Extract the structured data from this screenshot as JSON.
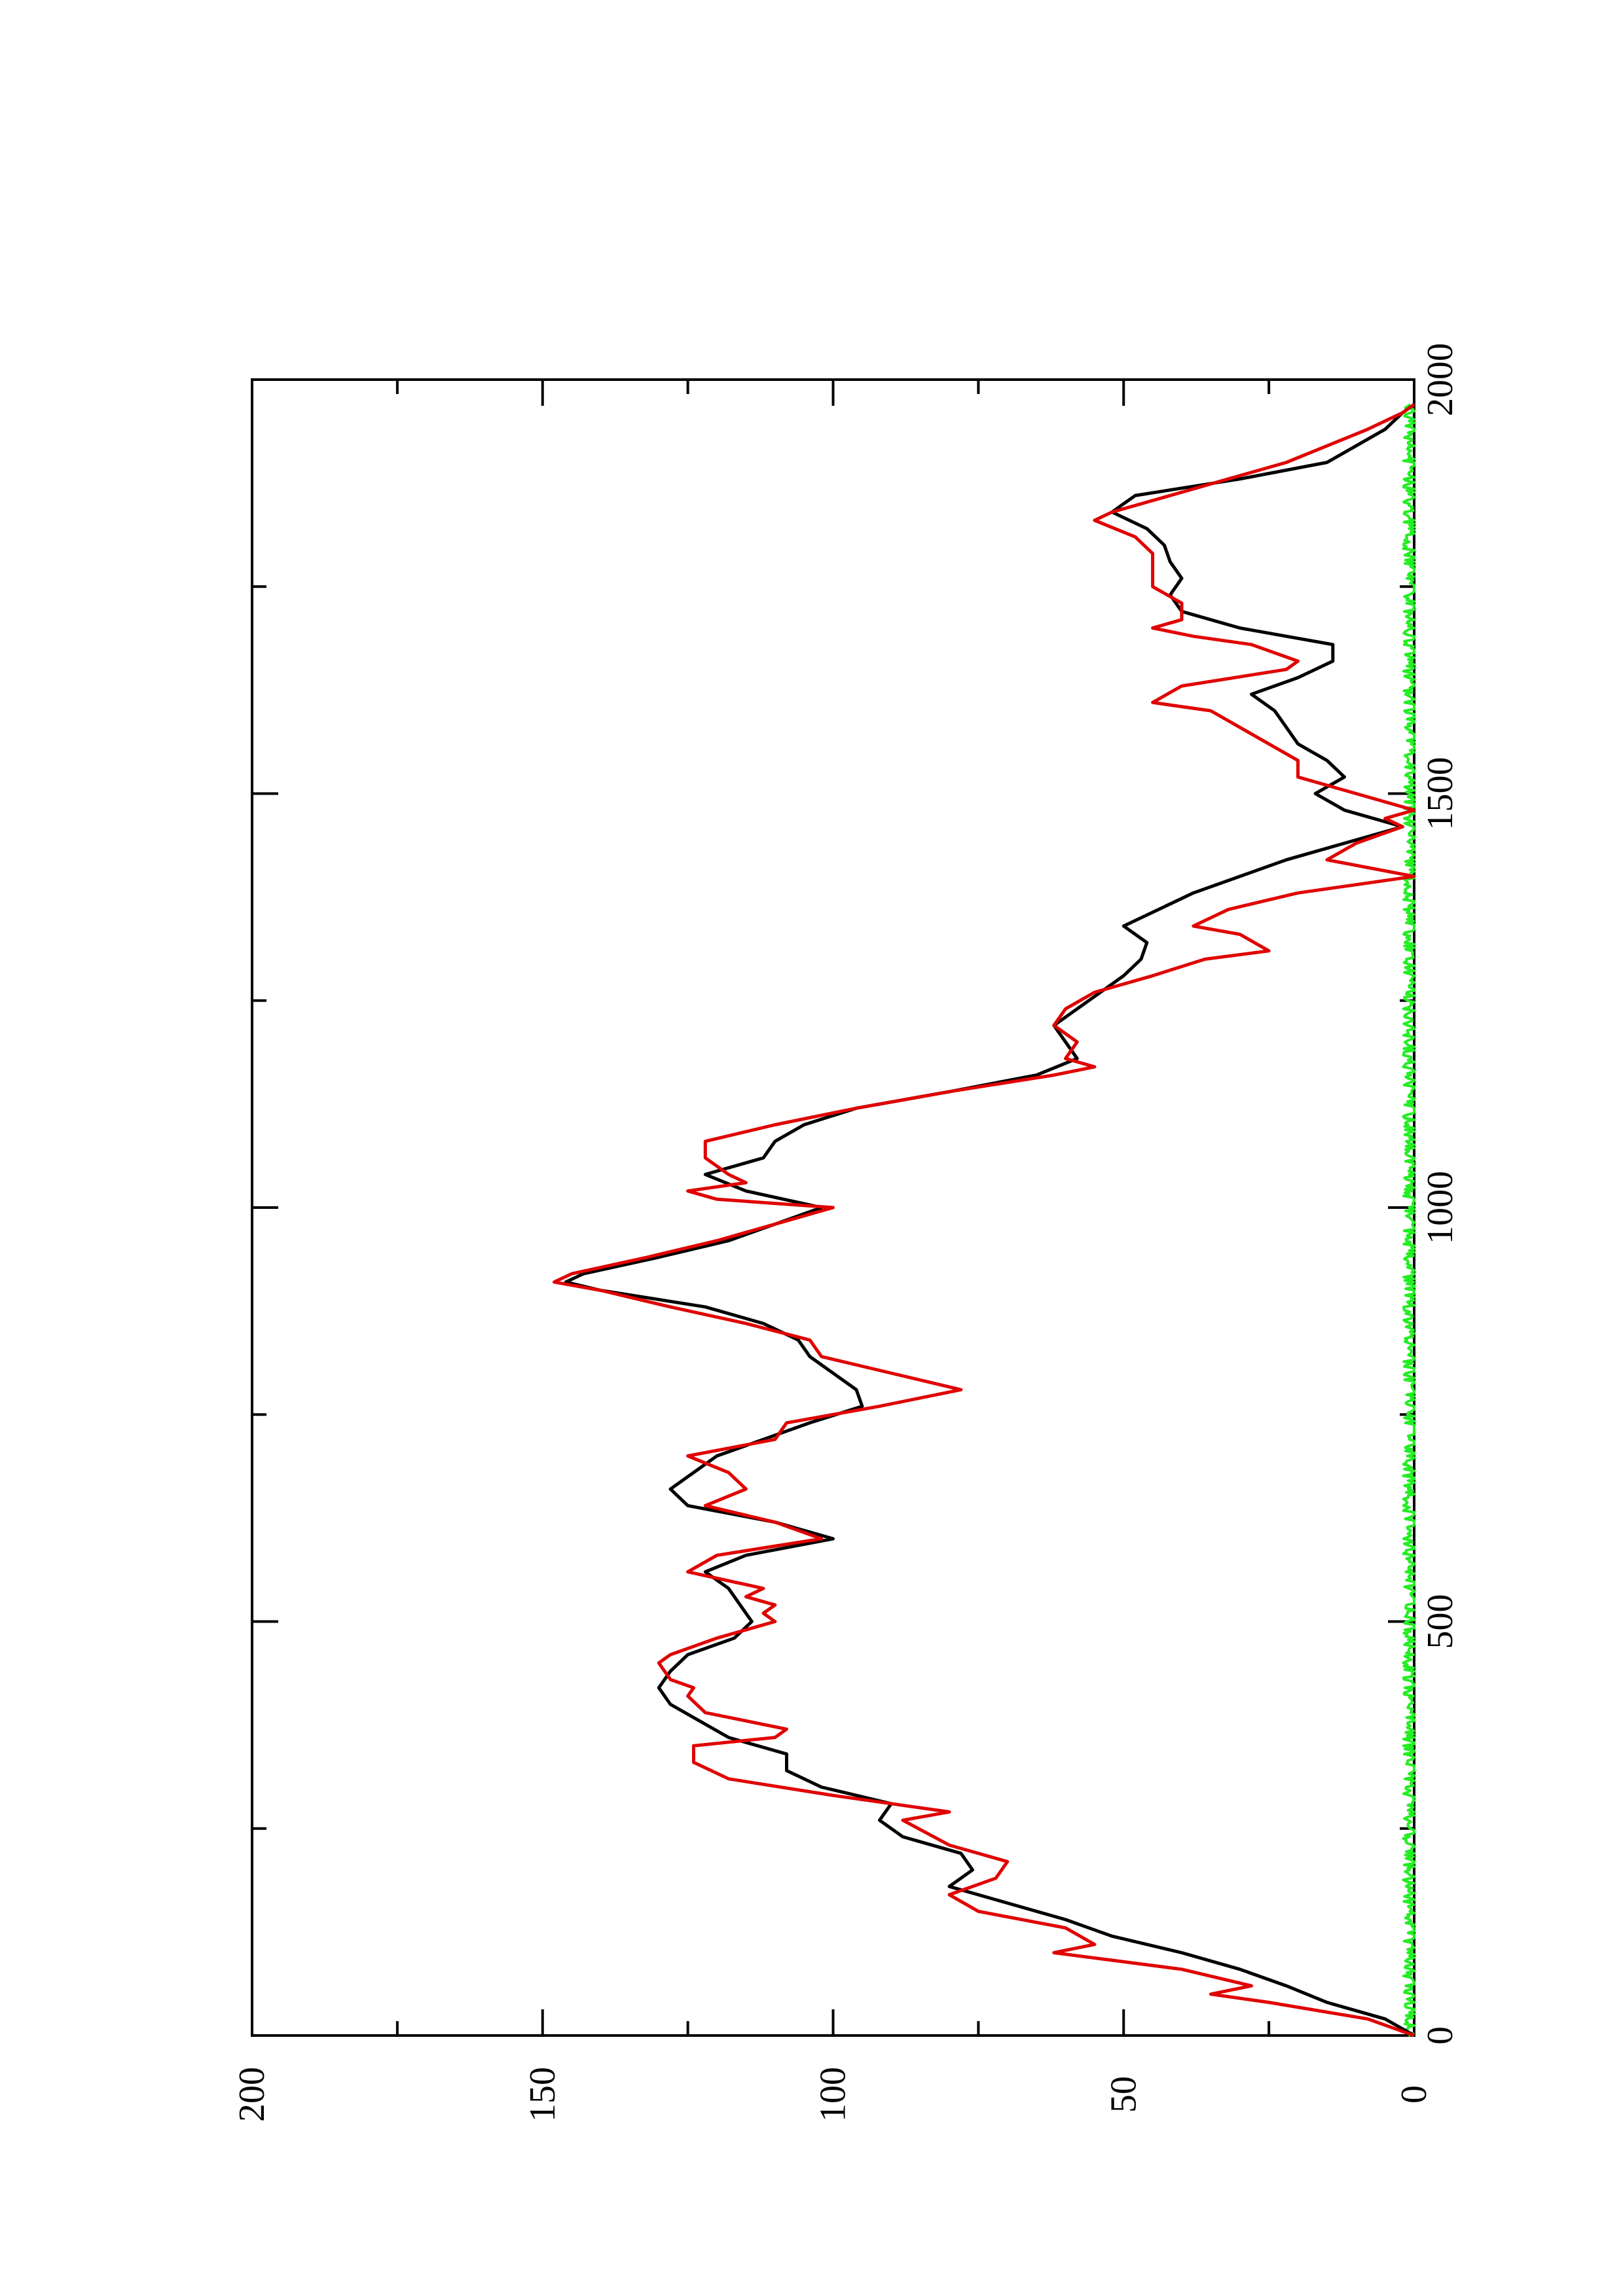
{
  "chart_data": {
    "type": "line",
    "orientation": "rotated 90 degrees counter-clockwise",
    "title": "",
    "xlabel": "",
    "ylabel": "",
    "xlim": [
      0,
      2000
    ],
    "ylim": [
      0,
      200
    ],
    "x_ticks": [
      0,
      500,
      1000,
      1500,
      2000
    ],
    "y_ticks": [
      0,
      50,
      100,
      150,
      200
    ],
    "x_tick_labels": [
      "0",
      "500",
      "1000",
      "1500",
      "2000"
    ],
    "y_tick_labels": [
      "0",
      "50",
      "100",
      "150",
      "200"
    ],
    "grid": false,
    "legend": "none",
    "series": [
      {
        "color": "#000000",
        "points": [
          [
            0,
            0
          ],
          [
            20,
            5
          ],
          [
            40,
            15
          ],
          [
            60,
            22
          ],
          [
            80,
            30
          ],
          [
            100,
            40
          ],
          [
            120,
            52
          ],
          [
            140,
            60
          ],
          [
            160,
            70
          ],
          [
            180,
            80
          ],
          [
            200,
            76
          ],
          [
            220,
            78
          ],
          [
            240,
            88
          ],
          [
            260,
            92
          ],
          [
            280,
            90
          ],
          [
            300,
            102
          ],
          [
            320,
            108
          ],
          [
            340,
            108
          ],
          [
            360,
            118
          ],
          [
            380,
            123
          ],
          [
            400,
            128
          ],
          [
            420,
            130
          ],
          [
            440,
            128
          ],
          [
            460,
            125
          ],
          [
            480,
            117
          ],
          [
            500,
            114
          ],
          [
            520,
            116
          ],
          [
            540,
            118
          ],
          [
            560,
            122
          ],
          [
            580,
            115
          ],
          [
            600,
            100
          ],
          [
            620,
            110
          ],
          [
            640,
            125
          ],
          [
            660,
            128
          ],
          [
            680,
            124
          ],
          [
            700,
            120
          ],
          [
            720,
            112
          ],
          [
            740,
            104
          ],
          [
            760,
            95
          ],
          [
            780,
            96
          ],
          [
            800,
            100
          ],
          [
            820,
            104
          ],
          [
            840,
            106
          ],
          [
            860,
            112
          ],
          [
            880,
            122
          ],
          [
            900,
            140
          ],
          [
            910,
            146
          ],
          [
            920,
            143
          ],
          [
            940,
            130
          ],
          [
            960,
            118
          ],
          [
            980,
            110
          ],
          [
            1000,
            102
          ],
          [
            1020,
            115
          ],
          [
            1040,
            122
          ],
          [
            1060,
            112
          ],
          [
            1080,
            110
          ],
          [
            1100,
            105
          ],
          [
            1120,
            96
          ],
          [
            1140,
            80
          ],
          [
            1160,
            65
          ],
          [
            1180,
            58
          ],
          [
            1200,
            60
          ],
          [
            1220,
            62
          ],
          [
            1240,
            58
          ],
          [
            1260,
            54
          ],
          [
            1280,
            50
          ],
          [
            1300,
            47
          ],
          [
            1320,
            46
          ],
          [
            1340,
            50
          ],
          [
            1360,
            44
          ],
          [
            1380,
            38
          ],
          [
            1400,
            30
          ],
          [
            1420,
            22
          ],
          [
            1440,
            12
          ],
          [
            1460,
            2
          ],
          [
            1480,
            12
          ],
          [
            1500,
            17
          ],
          [
            1520,
            12
          ],
          [
            1540,
            15
          ],
          [
            1560,
            20
          ],
          [
            1580,
            22
          ],
          [
            1600,
            24
          ],
          [
            1620,
            28
          ],
          [
            1640,
            20
          ],
          [
            1660,
            14
          ],
          [
            1680,
            14
          ],
          [
            1700,
            30
          ],
          [
            1720,
            40
          ],
          [
            1740,
            42
          ],
          [
            1760,
            40
          ],
          [
            1780,
            42
          ],
          [
            1800,
            43
          ],
          [
            1820,
            46
          ],
          [
            1840,
            52
          ],
          [
            1860,
            48
          ],
          [
            1880,
            30
          ],
          [
            1900,
            15
          ],
          [
            1920,
            10
          ],
          [
            1940,
            5
          ],
          [
            1960,
            2
          ],
          [
            1970,
            0
          ]
        ]
      },
      {
        "color": "#e00000",
        "points": [
          [
            0,
            0
          ],
          [
            20,
            8
          ],
          [
            40,
            25
          ],
          [
            50,
            35
          ],
          [
            60,
            28
          ],
          [
            80,
            40
          ],
          [
            100,
            62
          ],
          [
            110,
            55
          ],
          [
            130,
            60
          ],
          [
            150,
            75
          ],
          [
            170,
            80
          ],
          [
            190,
            72
          ],
          [
            210,
            70
          ],
          [
            230,
            80
          ],
          [
            260,
            88
          ],
          [
            270,
            80
          ],
          [
            290,
            100
          ],
          [
            310,
            118
          ],
          [
            330,
            124
          ],
          [
            350,
            124
          ],
          [
            360,
            110
          ],
          [
            370,
            108
          ],
          [
            390,
            122
          ],
          [
            410,
            125
          ],
          [
            420,
            124
          ],
          [
            430,
            128
          ],
          [
            450,
            130
          ],
          [
            460,
            128
          ],
          [
            480,
            120
          ],
          [
            500,
            110
          ],
          [
            510,
            112
          ],
          [
            520,
            110
          ],
          [
            530,
            115
          ],
          [
            540,
            112
          ],
          [
            560,
            125
          ],
          [
            580,
            120
          ],
          [
            600,
            102
          ],
          [
            620,
            110
          ],
          [
            640,
            122
          ],
          [
            660,
            115
          ],
          [
            680,
            118
          ],
          [
            700,
            125
          ],
          [
            720,
            110
          ],
          [
            740,
            108
          ],
          [
            760,
            92
          ],
          [
            780,
            78
          ],
          [
            800,
            90
          ],
          [
            820,
            102
          ],
          [
            840,
            104
          ],
          [
            860,
            115
          ],
          [
            880,
            128
          ],
          [
            900,
            140
          ],
          [
            910,
            148
          ],
          [
            920,
            145
          ],
          [
            940,
            132
          ],
          [
            960,
            120
          ],
          [
            980,
            110
          ],
          [
            1000,
            100
          ],
          [
            1010,
            120
          ],
          [
            1020,
            125
          ],
          [
            1030,
            115
          ],
          [
            1040,
            118
          ],
          [
            1060,
            122
          ],
          [
            1080,
            122
          ],
          [
            1100,
            110
          ],
          [
            1120,
            96
          ],
          [
            1140,
            80
          ],
          [
            1160,
            62
          ],
          [
            1170,
            55
          ],
          [
            1180,
            60
          ],
          [
            1200,
            58
          ],
          [
            1220,
            62
          ],
          [
            1240,
            60
          ],
          [
            1260,
            55
          ],
          [
            1280,
            45
          ],
          [
            1300,
            36
          ],
          [
            1310,
            25
          ],
          [
            1330,
            30
          ],
          [
            1340,
            38
          ],
          [
            1360,
            32
          ],
          [
            1380,
            20
          ],
          [
            1390,
            10
          ],
          [
            1400,
            0
          ],
          [
            1420,
            15
          ],
          [
            1440,
            10
          ],
          [
            1460,
            2
          ],
          [
            1470,
            5
          ],
          [
            1480,
            0
          ],
          [
            1500,
            10
          ],
          [
            1520,
            20
          ],
          [
            1540,
            20
          ],
          [
            1560,
            25
          ],
          [
            1580,
            30
          ],
          [
            1600,
            35
          ],
          [
            1610,
            45
          ],
          [
            1630,
            40
          ],
          [
            1650,
            22
          ],
          [
            1660,
            20
          ],
          [
            1680,
            28
          ],
          [
            1690,
            38
          ],
          [
            1700,
            45
          ],
          [
            1710,
            40
          ],
          [
            1730,
            40
          ],
          [
            1750,
            45
          ],
          [
            1770,
            45
          ],
          [
            1790,
            45
          ],
          [
            1810,
            48
          ],
          [
            1830,
            55
          ],
          [
            1840,
            52
          ],
          [
            1860,
            42
          ],
          [
            1880,
            32
          ],
          [
            1900,
            22
          ],
          [
            1920,
            15
          ],
          [
            1940,
            8
          ],
          [
            1960,
            2
          ],
          [
            1970,
            0
          ]
        ]
      },
      {
        "color": "#22ee22",
        "noise_band": true,
        "mean": 0.6,
        "max": 2.2,
        "x_range": [
          0,
          1970
        ]
      }
    ]
  }
}
